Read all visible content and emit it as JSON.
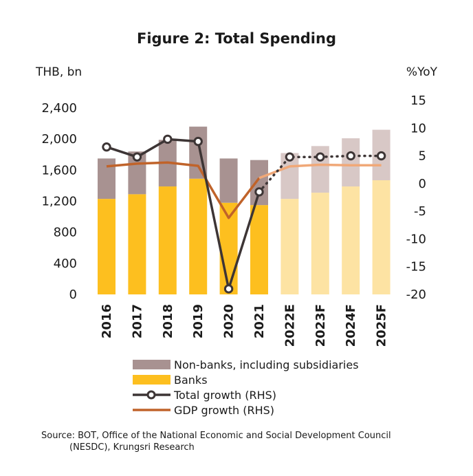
{
  "chart_data": {
    "type": "bar",
    "title": "Figure 2: Total Spending",
    "y_left_unit": "THB, bn",
    "y_right_unit": "%YoY",
    "y_left_ticks": [
      "2,400",
      "2,000",
      "1,600",
      "1,200",
      "800",
      "400",
      "0"
    ],
    "y_left_tick_values": [
      2400,
      2000,
      1600,
      1200,
      800,
      400,
      0
    ],
    "y_right_ticks": [
      "15",
      "10",
      "5",
      "0",
      "-5",
      "-10",
      "-15",
      "-20"
    ],
    "y_right_tick_values": [
      15,
      10,
      5,
      0,
      -5,
      -10,
      -15,
      -20
    ],
    "ylim_left": [
      0,
      2400
    ],
    "ylim_right": [
      -20,
      15
    ],
    "categories": [
      "2016",
      "2017",
      "2018",
      "2019",
      "2020",
      "2021",
      "2022E",
      "2023F",
      "2024F",
      "2025F"
    ],
    "forecast_from_index": 6,
    "series": [
      {
        "name": "Non-banks, including subsidiaries",
        "kind": "stacked-bar",
        "color": "#a89291",
        "forecast_color": "#d8c8c6",
        "values": [
          520,
          550,
          600,
          670,
          570,
          580,
          590,
          600,
          620,
          650
        ]
      },
      {
        "name": "Banks",
        "kind": "stacked-bar",
        "color": "#fdbf1f",
        "forecast_color": "#fde3a3",
        "values": [
          1230,
          1290,
          1390,
          1490,
          1180,
          1150,
          1230,
          1310,
          1390,
          1470
        ]
      },
      {
        "name": "Total growth (RHS)",
        "kind": "line-markers",
        "color": "#3d3535",
        "forecast_style": "dotted",
        "values": [
          6.6,
          4.8,
          8.0,
          7.6,
          -19.0,
          -1.5,
          4.8,
          4.8,
          5.0,
          5.0
        ]
      },
      {
        "name": "GDP growth (RHS)",
        "kind": "line",
        "color": "#c0632a",
        "forecast_color": "#f0a878",
        "values": [
          3.1,
          3.6,
          3.8,
          3.2,
          -6.2,
          1.0,
          3.1,
          3.4,
          3.3,
          3.3
        ]
      }
    ],
    "legend": [
      "Non-banks, including subsidiaries",
      "Banks",
      "Total growth (RHS)",
      "GDP growth (RHS)"
    ],
    "legend_position": "bottom",
    "grid": false
  },
  "source": {
    "line1": "Source: BOT, Office of the National Economic and Social Development Council",
    "line2": "(NESDC), Krungsri Research"
  }
}
